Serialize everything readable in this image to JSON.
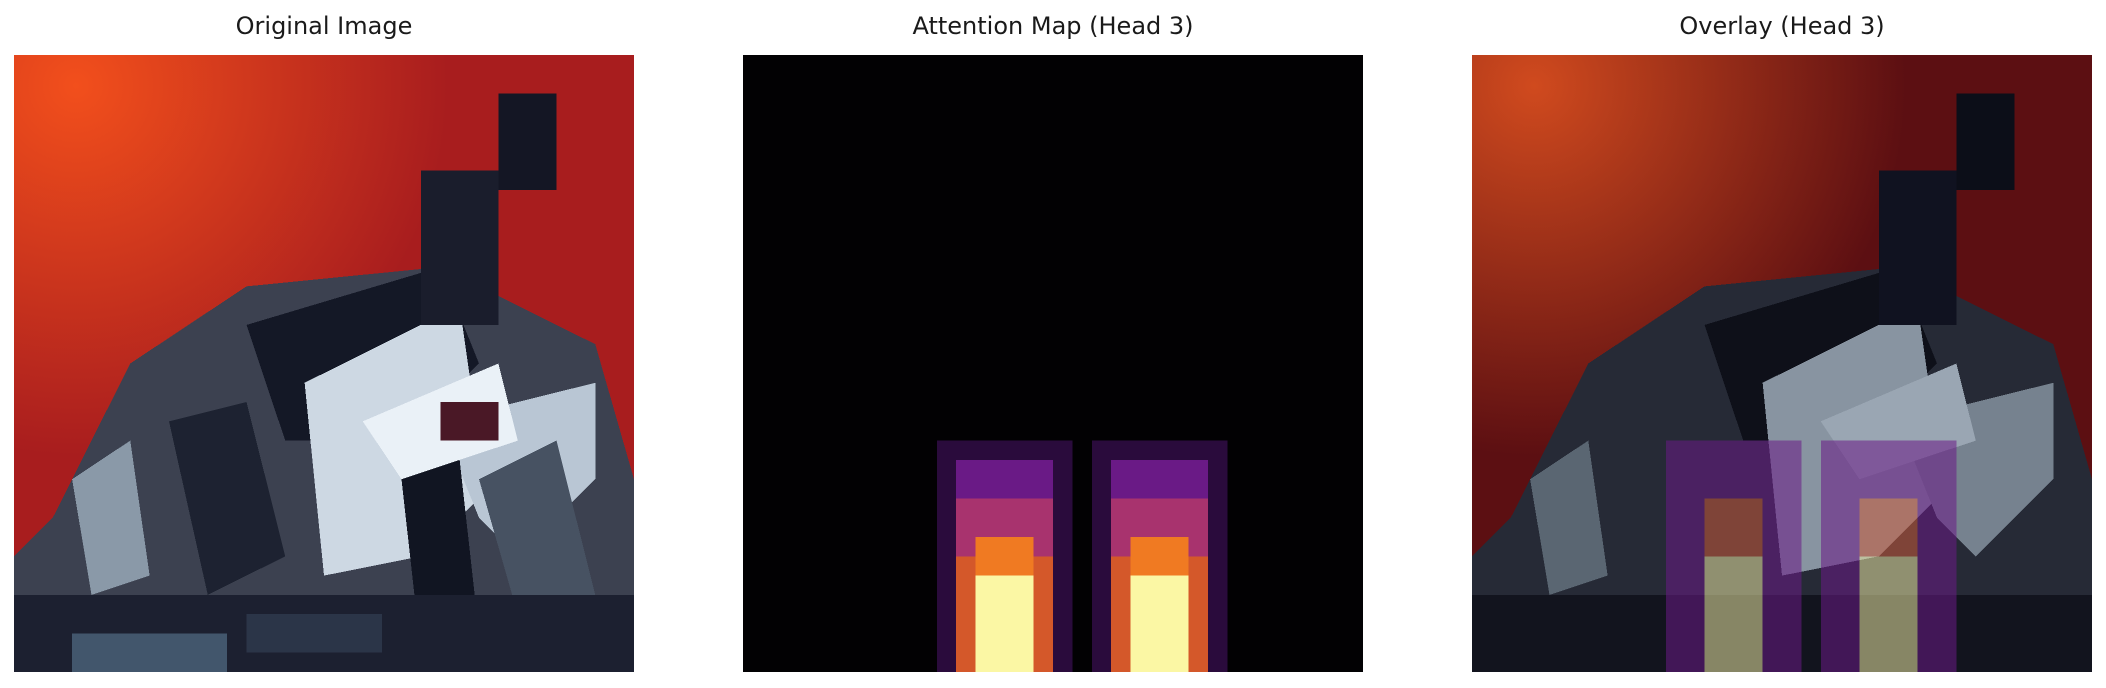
{
  "panels": [
    {
      "title": "Original Image"
    },
    {
      "title": "Attention Map (Head 3)"
    },
    {
      "title": "Overlay (Head 3)"
    }
  ],
  "colors": {
    "sky_red": "#a91d1d",
    "sky_orange": "#ef4a18",
    "car_white": "#dfe6ee",
    "car_gray": "#7c8a99",
    "shadow_dark": "#1b1c2c",
    "map_black": "#020103",
    "map_purple": "#6a1a86",
    "map_orange": "#f07a22",
    "map_yellow": "#fbf7a4"
  }
}
